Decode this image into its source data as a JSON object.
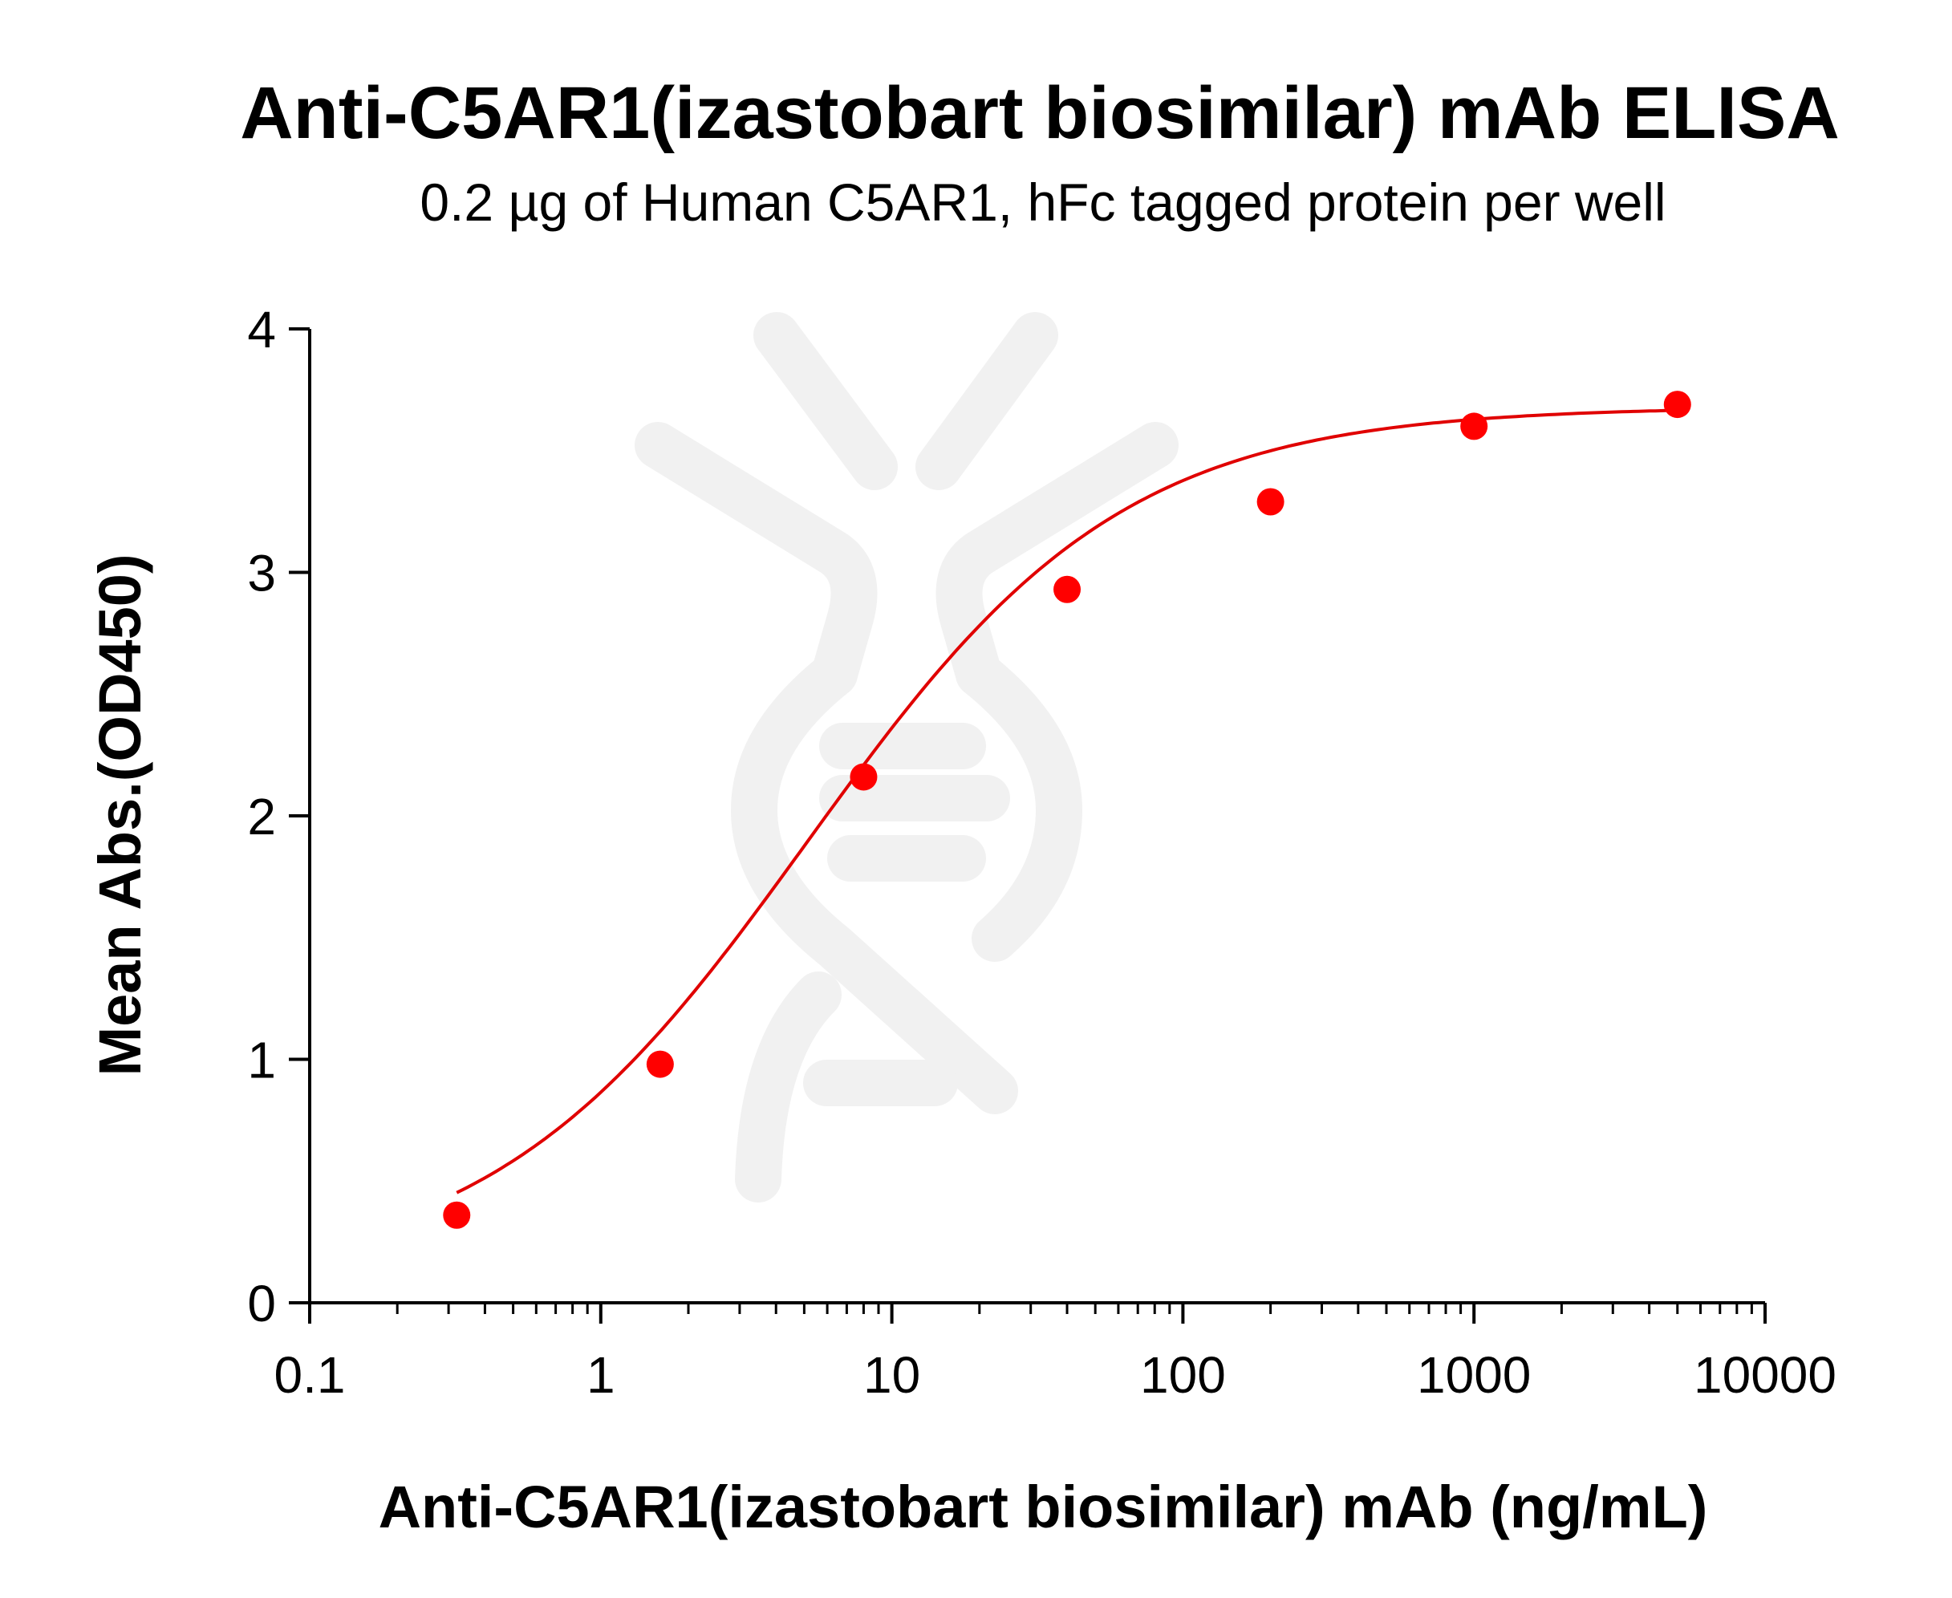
{
  "chart_data": {
    "type": "scatter",
    "title": "Anti-C5AR1(izastobart biosimilar) mAb ELISA",
    "subtitle": "0.2 µg of Human C5AR1, hFc tagged protein per well",
    "xlabel": "Anti-C5AR1(izastobart biosimilar) mAb (ng/mL)",
    "ylabel": "Mean Abs.(OD450)",
    "x_scale": "log",
    "xlim": [
      0.1,
      10000
    ],
    "ylim": [
      0,
      4
    ],
    "x_ticks": [
      0.1,
      1,
      10,
      100,
      1000,
      10000
    ],
    "x_tick_labels": [
      "0.1",
      "1",
      "10",
      "100",
      "1000",
      "10000"
    ],
    "y_ticks": [
      0,
      1,
      2,
      3,
      4
    ],
    "y_tick_labels": [
      "0",
      "1",
      "2",
      "3",
      "4"
    ],
    "grid": false,
    "legend": "none",
    "series": [
      {
        "color": "#ff0000",
        "marker": "circle",
        "x": [
          0.32,
          1.6,
          8,
          40,
          200,
          1000,
          5000
        ],
        "y": [
          0.36,
          0.98,
          2.16,
          2.93,
          3.29,
          3.6,
          3.69
        ]
      }
    ],
    "fit_curve": {
      "color": "#e00000",
      "model": "4PL",
      "bottom": 0.1,
      "top": 3.68,
      "ec50": 5.1,
      "hill": 0.8
    }
  },
  "colors": {
    "points": "#ff0000",
    "curve": "#e00000",
    "axes": "#000000",
    "watermark": "#f1f1f1"
  },
  "watermark": {
    "icon": "dna-helix-logo-icon"
  }
}
